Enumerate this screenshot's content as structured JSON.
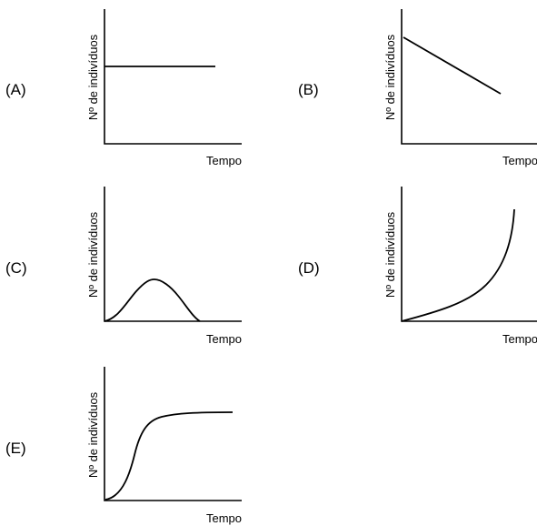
{
  "colors": {
    "background": "#ffffff",
    "line": "#000000"
  },
  "graphs": [
    {
      "id": "a",
      "option_label": "(A)",
      "ylabel": "Nº de indivíduos",
      "xlabel": "Tempo",
      "curve": "constant"
    },
    {
      "id": "b",
      "option_label": "(B)",
      "ylabel": "Nº de indivíduos",
      "xlabel": "Tempo",
      "curve": "linear decrease"
    },
    {
      "id": "c",
      "option_label": "(C)",
      "ylabel": "Nº de indivíduos",
      "xlabel": "Tempo",
      "curve": "rise and fall"
    },
    {
      "id": "d",
      "option_label": "(D)",
      "ylabel": "Nº de indivíduos",
      "xlabel": "Tempo",
      "curve": "exponential growth"
    },
    {
      "id": "e",
      "option_label": "(E)",
      "ylabel": "Nº de indivíduos",
      "xlabel": "Tempo",
      "curve": "logistic growth"
    }
  ]
}
